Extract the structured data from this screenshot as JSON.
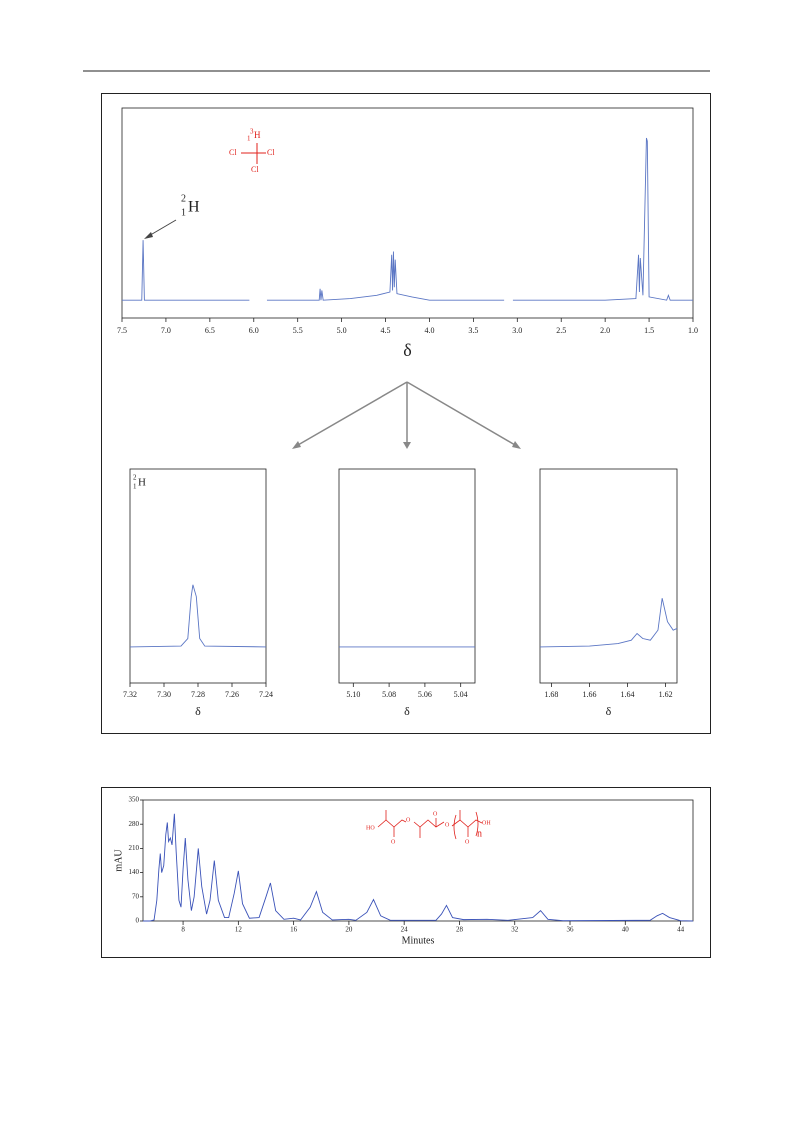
{
  "chart_data": [
    {
      "type": "line",
      "x": [
        7.5,
        7.3,
        7.275,
        7.26,
        7.245,
        6.5,
        6.05,
        6.0,
        5.85,
        5.3,
        5.255,
        5.245,
        5.235,
        5.225,
        5.21,
        4.9,
        4.6,
        4.45,
        4.43,
        4.42,
        4.41,
        4.4,
        4.39,
        4.37,
        4.2,
        4.0,
        3.15,
        3.1,
        3.05,
        2.0,
        1.65,
        1.62,
        1.61,
        1.6,
        1.57,
        1.53,
        1.52,
        1.5,
        1.3,
        1.28,
        1.26,
        1.0
      ],
      "series": [
        {
          "color": "#5b76c4",
          "values": [
            0,
            0,
            0,
            37,
            0,
            0,
            0,
            null,
            0,
            0,
            0,
            7,
            0,
            6,
            0,
            1,
            3,
            5,
            28,
            6,
            30,
            8,
            25,
            4,
            2,
            0,
            0,
            null,
            0,
            0,
            1,
            28,
            5,
            26,
            3,
            100,
            98,
            2,
            0,
            3,
            0,
            0
          ]
        }
      ],
      "xlim": [
        7.5,
        1.0
      ],
      "ylim": [
        -11,
        118.5
      ],
      "xticks": [
        7.5,
        {
          "value": 7,
          "label": "7.0"
        },
        6.5,
        {
          "value": 6,
          "label": "6.0"
        },
        5.5,
        {
          "value": 5,
          "label": "5.0"
        },
        4.5,
        {
          "value": 4,
          "label": "4.0"
        },
        3.5,
        {
          "value": 3,
          "label": "3.0"
        },
        2.5,
        {
          "value": 2,
          "label": "2.0"
        },
        1.5,
        {
          "value": 1,
          "label": "1.0"
        }
      ],
      "x_label": "δ",
      "annotation": {
        "mass": "2",
        "number": "1",
        "symbol": "H"
      },
      "molecule": {
        "center": {
          "mass": "3",
          "number": "1",
          "symbol": "H"
        },
        "ligands": [
          "Cl",
          "Cl",
          "Cl"
        ]
      }
    },
    {
      "type": "line",
      "x": [
        7.32,
        7.29,
        7.286,
        7.284,
        7.283,
        7.281,
        7.279,
        7.276,
        7.24
      ],
      "series": [
        {
          "color": "#5b76c4",
          "values": [
            0,
            0.5,
            5,
            30,
            37,
            30,
            5,
            0.5,
            0
          ]
        }
      ],
      "xlim": [
        7.32,
        7.24
      ],
      "ylim": [
        -21.5,
        106
      ],
      "xticks": [
        7.32,
        {
          "value": 7.3,
          "label": "7.30"
        },
        7.28,
        7.26,
        7.24
      ],
      "x_label": "δ",
      "annotation": {
        "mass": "2",
        "number": "1",
        "symbol": "H"
      }
    },
    {
      "type": "line",
      "x": [
        5.108,
        5.032
      ],
      "series": [
        {
          "color": "#5b76c4",
          "values": [
            0,
            0
          ]
        }
      ],
      "xlim": [
        5.108,
        5.032
      ],
      "ylim": [
        -21.5,
        106
      ],
      "xticks": [
        {
          "value": 5.1,
          "label": "5.10"
        },
        5.08,
        5.06,
        5.04
      ],
      "x_label": "δ"
    },
    {
      "type": "line",
      "x": [
        1.686,
        1.66,
        1.645,
        1.638,
        1.635,
        1.632,
        1.628,
        1.624,
        1.6218,
        1.619,
        1.616,
        1.614
      ],
      "series": [
        {
          "color": "#5b76c4",
          "values": [
            0,
            0.5,
            2,
            4,
            8,
            5,
            4,
            10,
            29,
            15,
            10,
            11
          ]
        }
      ],
      "xlim": [
        1.686,
        1.614
      ],
      "ylim": [
        -21.5,
        106
      ],
      "xticks": [
        1.68,
        1.66,
        1.64,
        1.62
      ],
      "x_label": "δ"
    },
    {
      "type": "line",
      "x": [
        5.1,
        5.6,
        5.9,
        6.1,
        6.25,
        6.35,
        6.45,
        6.6,
        6.75,
        6.86,
        6.95,
        7.08,
        7.2,
        7.37,
        7.5,
        7.7,
        7.85,
        8.0,
        8.16,
        8.35,
        8.6,
        8.8,
        9.1,
        9.35,
        9.7,
        9.95,
        10.26,
        10.55,
        11.0,
        11.3,
        11.7,
        12.0,
        12.3,
        12.8,
        13.5,
        14.0,
        14.32,
        14.7,
        15.3,
        16.0,
        16.5,
        17.2,
        17.65,
        18.1,
        18.8,
        20.0,
        20.5,
        21.3,
        21.78,
        22.3,
        23.0,
        26.3,
        26.7,
        27.06,
        27.5,
        28.3,
        30.0,
        31.5,
        33.3,
        33.87,
        34.4,
        35.5,
        41.8,
        42.3,
        42.7,
        43.2,
        44.0,
        44.9
      ],
      "series": [
        {
          "color": "#3a52b8",
          "values": [
            0,
            0,
            3,
            60,
            150,
            195,
            140,
            160,
            250,
            285,
            230,
            240,
            220,
            310,
            200,
            60,
            40,
            150,
            240,
            120,
            30,
            70,
            210,
            100,
            20,
            60,
            175,
            60,
            10,
            10,
            80,
            145,
            50,
            8,
            10,
            70,
            110,
            30,
            5,
            8,
            3,
            40,
            85,
            25,
            3,
            5,
            2,
            25,
            62,
            15,
            2,
            2,
            20,
            45,
            10,
            4,
            5,
            2,
            10,
            30,
            5,
            1,
            2,
            15,
            22,
            10,
            1,
            0
          ]
        }
      ],
      "xlim": [
        5.1,
        44.9
      ],
      "ylim": [
        0,
        350
      ],
      "xticks": [
        8,
        12,
        16,
        20,
        24,
        28,
        32,
        36,
        40,
        44
      ],
      "yticks": [
        0,
        70,
        140,
        210,
        280,
        350
      ],
      "x_label": "Minutes",
      "y_label": "mAU",
      "structure": {
        "labels": [
          "HO",
          "O",
          "O",
          "O",
          "O",
          "O",
          "OH",
          "n"
        ]
      }
    }
  ]
}
